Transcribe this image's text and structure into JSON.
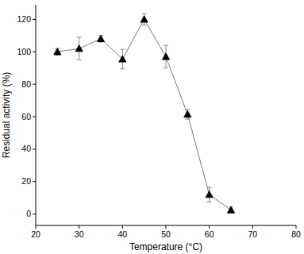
{
  "chart_data": {
    "type": "line",
    "x_label": "Temperature (°C)",
    "y_label": "Residual activity (%)",
    "x": [
      25,
      30,
      35,
      40,
      45,
      50,
      55,
      60,
      65
    ],
    "values": [
      100,
      102,
      108,
      95.5,
      120,
      97,
      61.5,
      12,
      2.5
    ],
    "errors": [
      2,
      7,
      2,
      6,
      3.5,
      7,
      3,
      4.5,
      2
    ],
    "xlim": [
      20,
      80
    ],
    "xticks": [
      20,
      30,
      40,
      50,
      60,
      70,
      80
    ],
    "ylim": [
      -7,
      129
    ],
    "yticks": [
      0,
      20,
      40,
      60,
      80,
      100,
      120
    ],
    "color": "#000000",
    "marker": "triangle",
    "line_style": "solid",
    "grid": false
  }
}
